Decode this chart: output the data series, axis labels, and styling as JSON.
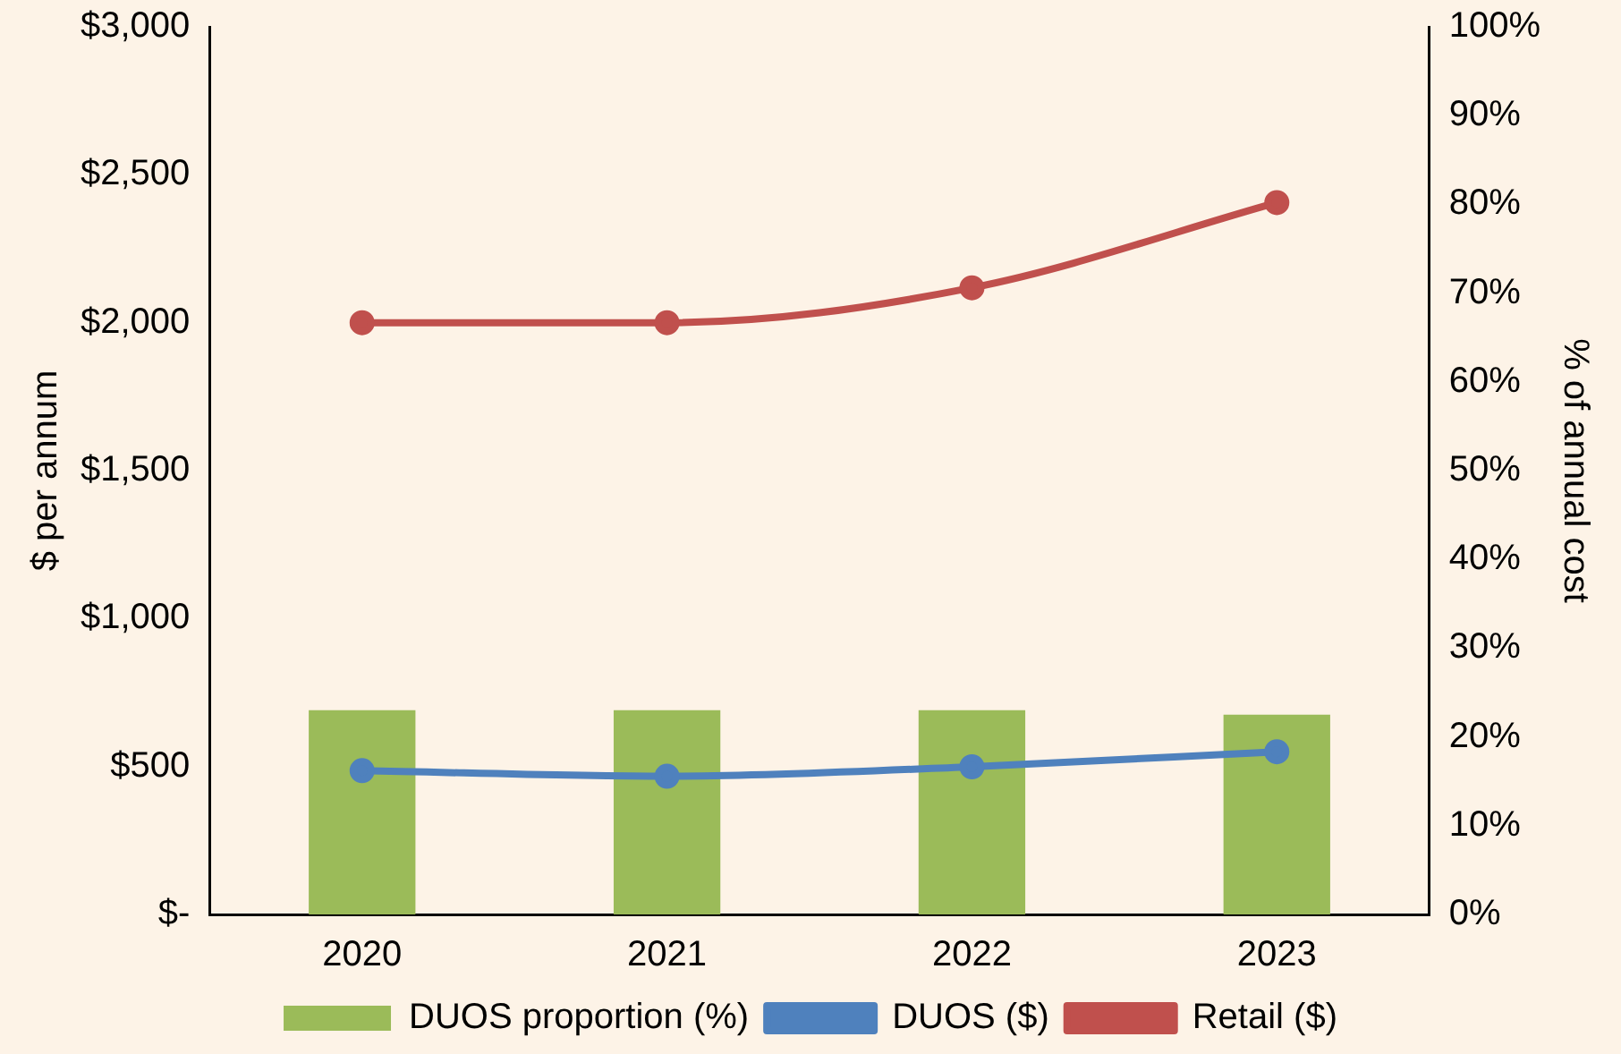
{
  "chart_data": {
    "type": "bar",
    "categories": [
      "2020",
      "2021",
      "2022",
      "2023"
    ],
    "ylabel": "$ per annum",
    "y2label": "% of annual cost",
    "ylim": [
      0,
      3000
    ],
    "yticks": [
      {
        "value": 0,
        "label": "$-"
      },
      {
        "value": 500,
        "label": "$500"
      },
      {
        "value": 1000,
        "label": "$1,000"
      },
      {
        "value": 1500,
        "label": "$1,500"
      },
      {
        "value": 2000,
        "label": "$2,000"
      },
      {
        "value": 2500,
        "label": "$2,500"
      },
      {
        "value": 3000,
        "label": "$3,000"
      }
    ],
    "y2lim": [
      0,
      100
    ],
    "y2ticks": [
      {
        "value": 0,
        "label": "0%"
      },
      {
        "value": 10,
        "label": "10%"
      },
      {
        "value": 20,
        "label": "20%"
      },
      {
        "value": 30,
        "label": "30%"
      },
      {
        "value": 40,
        "label": "40%"
      },
      {
        "value": 50,
        "label": "50%"
      },
      {
        "value": 60,
        "label": "60%"
      },
      {
        "value": 70,
        "label": "70%"
      },
      {
        "value": 80,
        "label": "80%"
      },
      {
        "value": 90,
        "label": "90%"
      },
      {
        "value": 100,
        "label": "100%"
      }
    ],
    "series": [
      {
        "name": "DUOS proportion (%)",
        "type": "bar",
        "axis": "y2",
        "color": "#9bbb59",
        "values": [
          23,
          23,
          23,
          22.5
        ]
      },
      {
        "name": "DUOS ($)",
        "type": "line",
        "color": "#4f81bd",
        "values": [
          486,
          467,
          499,
          550
        ]
      },
      {
        "name": "Retail ($)",
        "type": "line",
        "color": "#c0504d",
        "values": [
          2000,
          2000,
          2118,
          2406
        ]
      }
    ],
    "marker": "circle",
    "grid": false,
    "legend": "bottom"
  }
}
